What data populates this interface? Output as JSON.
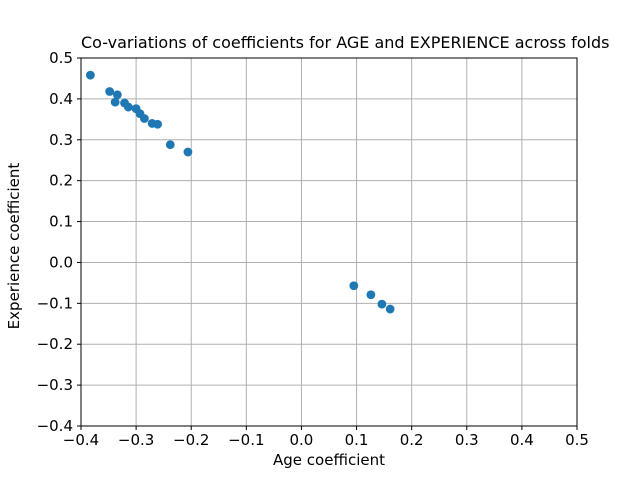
{
  "chart_data": {
    "type": "scatter",
    "title": "Co-variations of coefficients for AGE and EXPERIENCE across folds",
    "xlabel": "Age coefficient",
    "ylabel": "Experience coefficient",
    "xlim": [
      -0.4,
      0.5
    ],
    "ylim": [
      -0.4,
      0.5
    ],
    "xticks": [
      -0.4,
      -0.3,
      -0.2,
      -0.1,
      0.0,
      0.1,
      0.2,
      0.3,
      0.4,
      0.5
    ],
    "yticks": [
      -0.4,
      -0.3,
      -0.2,
      -0.1,
      0.0,
      0.1,
      0.2,
      0.3,
      0.4,
      0.5
    ],
    "xtick_labels": [
      "−0.4",
      "−0.3",
      "−0.2",
      "−0.1",
      "0.0",
      "0.1",
      "0.2",
      "0.3",
      "0.4",
      "0.5"
    ],
    "ytick_labels": [
      "−0.4",
      "−0.3",
      "−0.2",
      "−0.1",
      "0.0",
      "0.1",
      "0.2",
      "0.3",
      "0.4",
      "0.5"
    ],
    "grid": true,
    "legend_position": "none",
    "marker_color": "#1f77b4",
    "grid_color": "#b0b0b0",
    "spine_color": "#000000",
    "marker_radius_px": 4.4,
    "points": [
      [
        -0.383,
        0.458
      ],
      [
        -0.348,
        0.418
      ],
      [
        -0.334,
        0.41
      ],
      [
        -0.338,
        0.392
      ],
      [
        -0.321,
        0.39
      ],
      [
        -0.314,
        0.38
      ],
      [
        -0.3,
        0.376
      ],
      [
        -0.293,
        0.364
      ],
      [
        -0.285,
        0.352
      ],
      [
        -0.271,
        0.34
      ],
      [
        -0.261,
        0.338
      ],
      [
        -0.238,
        0.288
      ],
      [
        -0.206,
        0.27
      ],
      [
        0.095,
        -0.057
      ],
      [
        0.126,
        -0.079
      ],
      [
        0.146,
        -0.102
      ],
      [
        0.161,
        -0.114
      ]
    ]
  }
}
